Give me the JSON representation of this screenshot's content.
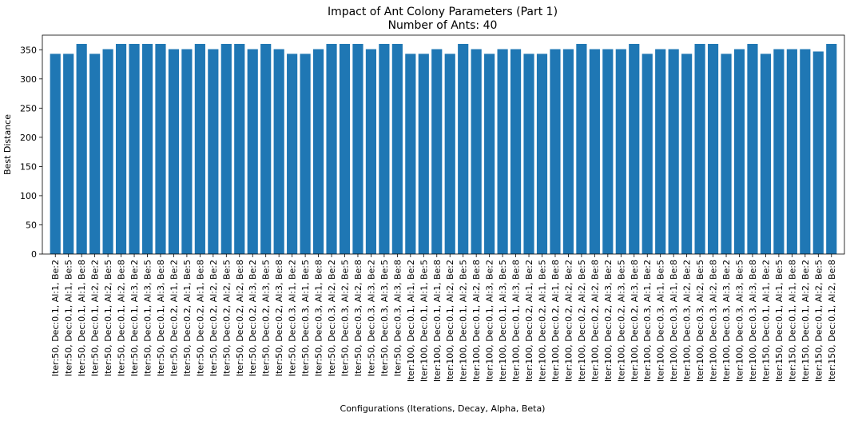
{
  "chart_data": {
    "type": "bar",
    "title": "Impact of Ant Colony Parameters (Part 1)",
    "subtitle": "Number of Ants: 40",
    "xlabel": "Configurations (Iterations, Decay, Alpha, Beta)",
    "ylabel": "Best Distance",
    "ylim": [
      0,
      375
    ],
    "yticks": [
      0,
      50,
      100,
      150,
      200,
      250,
      300,
      350
    ],
    "bar_color": "#1f77b4",
    "categories": [
      "Iter:50, Dec:0.1, Al:1, Be:2",
      "Iter:50, Dec:0.1, Al:1, Be:5",
      "Iter:50, Dec:0.1, Al:1, Be:8",
      "Iter:50, Dec:0.1, Al:2, Be:2",
      "Iter:50, Dec:0.1, Al:2, Be:5",
      "Iter:50, Dec:0.1, Al:2, Be:8",
      "Iter:50, Dec:0.1, Al:3, Be:2",
      "Iter:50, Dec:0.1, Al:3, Be:5",
      "Iter:50, Dec:0.1, Al:3, Be:8",
      "Iter:50, Dec:0.2, Al:1, Be:2",
      "Iter:50, Dec:0.2, Al:1, Be:5",
      "Iter:50, Dec:0.2, Al:1, Be:8",
      "Iter:50, Dec:0.2, Al:2, Be:2",
      "Iter:50, Dec:0.2, Al:2, Be:5",
      "Iter:50, Dec:0.2, Al:2, Be:8",
      "Iter:50, Dec:0.2, Al:3, Be:2",
      "Iter:50, Dec:0.2, Al:3, Be:5",
      "Iter:50, Dec:0.2, Al:3, Be:8",
      "Iter:50, Dec:0.3, Al:1, Be:2",
      "Iter:50, Dec:0.3, Al:1, Be:5",
      "Iter:50, Dec:0.3, Al:1, Be:8",
      "Iter:50, Dec:0.3, Al:2, Be:2",
      "Iter:50, Dec:0.3, Al:2, Be:5",
      "Iter:50, Dec:0.3, Al:2, Be:8",
      "Iter:50, Dec:0.3, Al:3, Be:2",
      "Iter:50, Dec:0.3, Al:3, Be:5",
      "Iter:50, Dec:0.3, Al:3, Be:8",
      "Iter:100, Dec:0.1, Al:1, Be:2",
      "Iter:100, Dec:0.1, Al:1, Be:5",
      "Iter:100, Dec:0.1, Al:1, Be:8",
      "Iter:100, Dec:0.1, Al:2, Be:2",
      "Iter:100, Dec:0.1, Al:2, Be:5",
      "Iter:100, Dec:0.1, Al:2, Be:8",
      "Iter:100, Dec:0.1, Al:3, Be:2",
      "Iter:100, Dec:0.1, Al:3, Be:5",
      "Iter:100, Dec:0.1, Al:3, Be:8",
      "Iter:100, Dec:0.2, Al:1, Be:2",
      "Iter:100, Dec:0.2, Al:1, Be:5",
      "Iter:100, Dec:0.2, Al:1, Be:8",
      "Iter:100, Dec:0.2, Al:2, Be:2",
      "Iter:100, Dec:0.2, Al:2, Be:5",
      "Iter:100, Dec:0.2, Al:2, Be:8",
      "Iter:100, Dec:0.2, Al:3, Be:2",
      "Iter:100, Dec:0.2, Al:3, Be:5",
      "Iter:100, Dec:0.2, Al:3, Be:8",
      "Iter:100, Dec:0.3, Al:1, Be:2",
      "Iter:100, Dec:0.3, Al:1, Be:5",
      "Iter:100, Dec:0.3, Al:1, Be:8",
      "Iter:100, Dec:0.3, Al:2, Be:2",
      "Iter:100, Dec:0.3, Al:2, Be:5",
      "Iter:100, Dec:0.3, Al:2, Be:8",
      "Iter:100, Dec:0.3, Al:3, Be:2",
      "Iter:100, Dec:0.3, Al:3, Be:5",
      "Iter:100, Dec:0.3, Al:3, Be:8",
      "Iter:150, Dec:0.1, Al:1, Be:2",
      "Iter:150, Dec:0.1, Al:1, Be:5",
      "Iter:150, Dec:0.1, Al:1, Be:8",
      "Iter:150, Dec:0.1, Al:2, Be:2",
      "Iter:150, Dec:0.1, Al:2, Be:5",
      "Iter:150, Dec:0.1, Al:2, Be:8"
    ],
    "values": [
      343,
      343,
      360,
      343,
      351,
      360,
      360,
      360,
      360,
      351,
      351,
      360,
      351,
      360,
      360,
      351,
      360,
      351,
      343,
      343,
      351,
      360,
      360,
      360,
      351,
      360,
      360,
      343,
      343,
      351,
      343,
      360,
      351,
      343,
      351,
      351,
      343,
      343,
      351,
      351,
      360,
      351,
      351,
      351,
      360,
      343,
      351,
      351,
      343,
      360,
      360,
      343,
      351,
      360,
      343,
      351,
      351,
      351,
      347,
      360
    ]
  }
}
